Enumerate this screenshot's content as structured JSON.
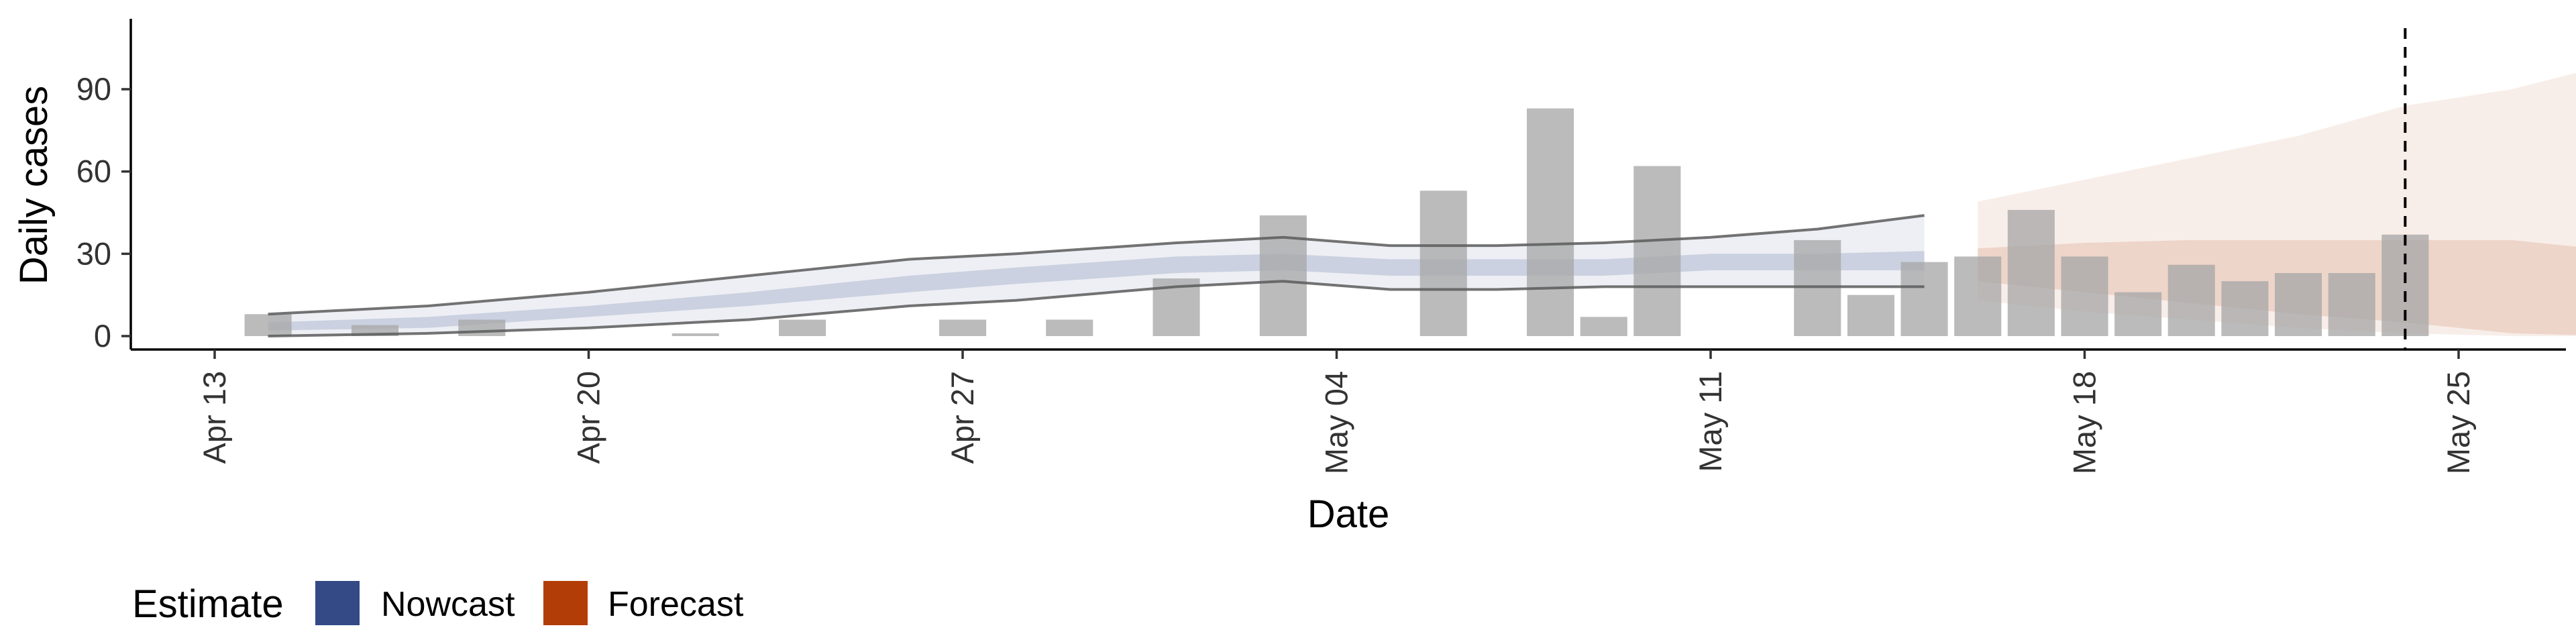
{
  "chart_data": {
    "type": "bar",
    "xlabel": "Date",
    "ylabel": "Daily cases",
    "x_axis": {
      "range": [
        "2020-04-13",
        "2020-05-30"
      ],
      "ticks": [
        "2020-04-13",
        "2020-04-20",
        "2020-04-27",
        "2020-05-04",
        "2020-05-11",
        "2020-05-18",
        "2020-05-25"
      ],
      "tick_labels": [
        "Apr 13",
        "Apr 20",
        "Apr 27",
        "May 04",
        "May 11",
        "May 18",
        "May 25"
      ]
    },
    "y_axis": {
      "range": [
        -3,
        113
      ],
      "ticks": [
        0,
        30,
        60,
        90
      ],
      "tick_labels": [
        "0",
        "30",
        "60",
        "90"
      ]
    },
    "grid": false,
    "legend": {
      "position": "bottom-left",
      "title": "Estimate",
      "entries": [
        {
          "label": "Nowcast",
          "color": "#334a87"
        },
        {
          "label": "Forecast",
          "color": "#b33d06"
        }
      ]
    },
    "colors": {
      "bars": "#a8a8a8",
      "nowcast": "#334a87",
      "forecast": "#b33d06",
      "bounds_line": "#5a5a5a"
    },
    "reference_line": {
      "date": "2020-05-24",
      "style": "dashed"
    },
    "observed_cases": {
      "dates": [
        "2020-04-14",
        "2020-04-16",
        "2020-04-18",
        "2020-04-22",
        "2020-04-24",
        "2020-04-27",
        "2020-04-29",
        "2020-05-01",
        "2020-05-03",
        "2020-05-06",
        "2020-05-08",
        "2020-05-09",
        "2020-05-10",
        "2020-05-13",
        "2020-05-14",
        "2020-05-15",
        "2020-05-16",
        "2020-05-17",
        "2020-05-18",
        "2020-05-19",
        "2020-05-20",
        "2020-05-21",
        "2020-05-22",
        "2020-05-23",
        "2020-05-24"
      ],
      "values": [
        8,
        4,
        6,
        1,
        6,
        6,
        6,
        21,
        44,
        53,
        83,
        7,
        62,
        35,
        15,
        27,
        29,
        46,
        29,
        16,
        26,
        20,
        23,
        23,
        37
      ]
    },
    "nowcast": {
      "dates": [
        "2020-04-14",
        "2020-04-17",
        "2020-04-20",
        "2020-04-23",
        "2020-04-26",
        "2020-04-28",
        "2020-05-01",
        "2020-05-03",
        "2020-05-05",
        "2020-05-07",
        "2020-05-09",
        "2020-05-11",
        "2020-05-13",
        "2020-05-15"
      ],
      "median": [
        3,
        5,
        9,
        14,
        20,
        23,
        26,
        27,
        24,
        25,
        25,
        27,
        27,
        28
      ],
      "lower_50": [
        2,
        3,
        7,
        11,
        16,
        19,
        23,
        24,
        22,
        22,
        22,
        24,
        24,
        24
      ],
      "upper_50": [
        5,
        7,
        11,
        16,
        22,
        25,
        29,
        30,
        28,
        28,
        28,
        30,
        30,
        31
      ],
      "lower_90": [
        0,
        1,
        3,
        6,
        11,
        13,
        18,
        20,
        17,
        17,
        18,
        18,
        18,
        18
      ],
      "upper_90": [
        8,
        11,
        16,
        22,
        28,
        30,
        34,
        36,
        33,
        33,
        34,
        36,
        39,
        44
      ]
    },
    "forecast": {
      "dates": [
        "2020-05-16",
        "2020-05-18",
        "2020-05-20",
        "2020-05-22",
        "2020-05-24",
        "2020-05-26",
        "2020-05-28",
        "2020-05-29",
        "2020-05-30"
      ],
      "lower_50": [
        20,
        16,
        12,
        8,
        5,
        1,
        0,
        0,
        0
      ],
      "upper_50": [
        32,
        34,
        35,
        35,
        35,
        35,
        31,
        30,
        31
      ],
      "lower_90": [
        13,
        9,
        6,
        3,
        1,
        0,
        0,
        0,
        0
      ],
      "upper_90": [
        49,
        57,
        65,
        73,
        84,
        90,
        100,
        100,
        108
      ]
    }
  }
}
